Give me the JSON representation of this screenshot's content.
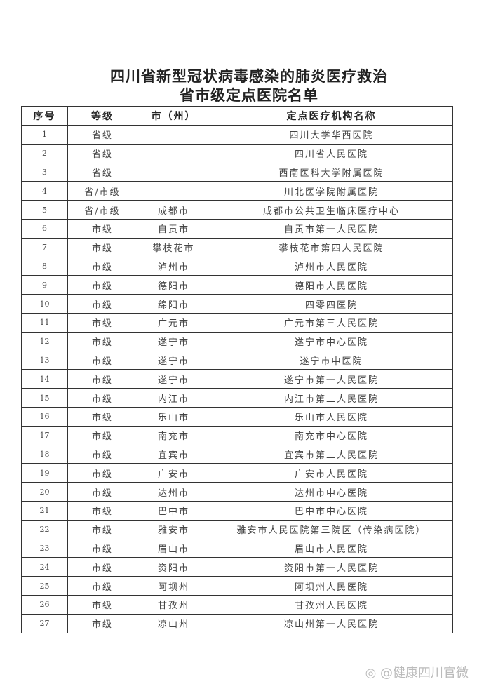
{
  "title_line1": "四川省新型冠状病毒感染的肺炎医疗救治",
  "title_line2": "省市级定点医院名单",
  "columns": [
    "序号",
    "等级",
    "市（州）",
    "定点医疗机构名称"
  ],
  "rows": [
    [
      "1",
      "省级",
      "",
      "四川大学华西医院"
    ],
    [
      "2",
      "省级",
      "",
      "四川省人民医院"
    ],
    [
      "3",
      "省级",
      "",
      "西南医科大学附属医院"
    ],
    [
      "4",
      "省/市级",
      "",
      "川北医学院附属医院"
    ],
    [
      "5",
      "省/市级",
      "成都市",
      "成都市公共卫生临床医疗中心"
    ],
    [
      "6",
      "市级",
      "自贡市",
      "自贡市第一人民医院"
    ],
    [
      "7",
      "市级",
      "攀枝花市",
      "攀枝花市第四人民医院"
    ],
    [
      "8",
      "市级",
      "泸州市",
      "泸州市人民医院"
    ],
    [
      "9",
      "市级",
      "德阳市",
      "德阳市人民医院"
    ],
    [
      "10",
      "市级",
      "绵阳市",
      "四零四医院"
    ],
    [
      "11",
      "市级",
      "广元市",
      "广元市第三人民医院"
    ],
    [
      "12",
      "市级",
      "遂宁市",
      "遂宁市中心医院"
    ],
    [
      "13",
      "市级",
      "遂宁市",
      "遂宁市中医院"
    ],
    [
      "14",
      "市级",
      "遂宁市",
      "遂宁市第一人民医院"
    ],
    [
      "15",
      "市级",
      "内江市",
      "内江市第二人民医院"
    ],
    [
      "16",
      "市级",
      "乐山市",
      "乐山市人民医院"
    ],
    [
      "17",
      "市级",
      "南充市",
      "南充市中心医院"
    ],
    [
      "18",
      "市级",
      "宜宾市",
      "宜宾市第二人民医院"
    ],
    [
      "19",
      "市级",
      "广安市",
      "广安市人民医院"
    ],
    [
      "20",
      "市级",
      "达州市",
      "达州市中心医院"
    ],
    [
      "21",
      "市级",
      "巴中市",
      "巴中市中心医院"
    ],
    [
      "22",
      "市级",
      "雅安市",
      "雅安市人民医院第三院区（传染病医院）"
    ],
    [
      "23",
      "市级",
      "眉山市",
      "眉山市人民医院"
    ],
    [
      "24",
      "市级",
      "资阳市",
      "资阳市第一人民医院"
    ],
    [
      "25",
      "市级",
      "阿坝州",
      "阿坝州人民医院"
    ],
    [
      "26",
      "市级",
      "甘孜州",
      "甘孜州人民医院"
    ],
    [
      "27",
      "市级",
      "凉山州",
      "凉山州第一人民医院"
    ]
  ],
  "watermark": "@健康四川官微",
  "watermark_icon": "weibo-icon"
}
